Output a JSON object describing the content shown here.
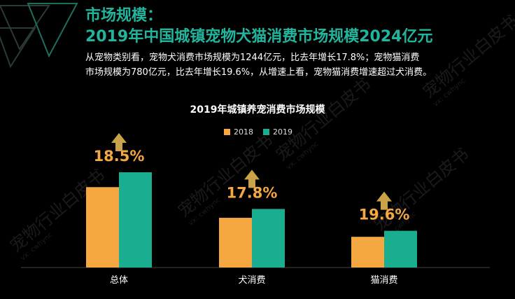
{
  "header": {
    "title_line1": "市场规模：",
    "title_line2": "2019年中国城镇宠物犬猫消费市场规模2024亿元"
  },
  "description": {
    "line1": "从宠物类别看，宠物犬消费市场规模为1244亿元，比去年增长17.8%；宠物猫消费",
    "line2": "市场规模为780亿元，比去年增长19.6%，从增速上看，宠物猫消费增速超过犬消费。"
  },
  "watermark": {
    "text": "宠物行业白皮书",
    "sub": "vx: cwhync"
  },
  "colors": {
    "title": "#22b59d",
    "series_2018": "#f5a742",
    "series_2019": "#1aae91",
    "growth": "#f5a742",
    "arrow": "#c9a24a",
    "background": "#000000"
  },
  "chart_data": {
    "type": "bar",
    "title": "2019年城镇养宠消费市场规模",
    "categories": [
      "总体",
      "犬消费",
      "猫消费"
    ],
    "series": [
      {
        "name": "2018",
        "values": [
          1708,
          1056,
          652
        ]
      },
      {
        "name": "2019",
        "values": [
          2024,
          1244,
          780
        ]
      }
    ],
    "growth_labels": [
      "18.5%",
      "17.8%",
      "19.6%"
    ],
    "ylim": [
      0,
      2024
    ],
    "legend_position": "top-center",
    "grid": false
  }
}
